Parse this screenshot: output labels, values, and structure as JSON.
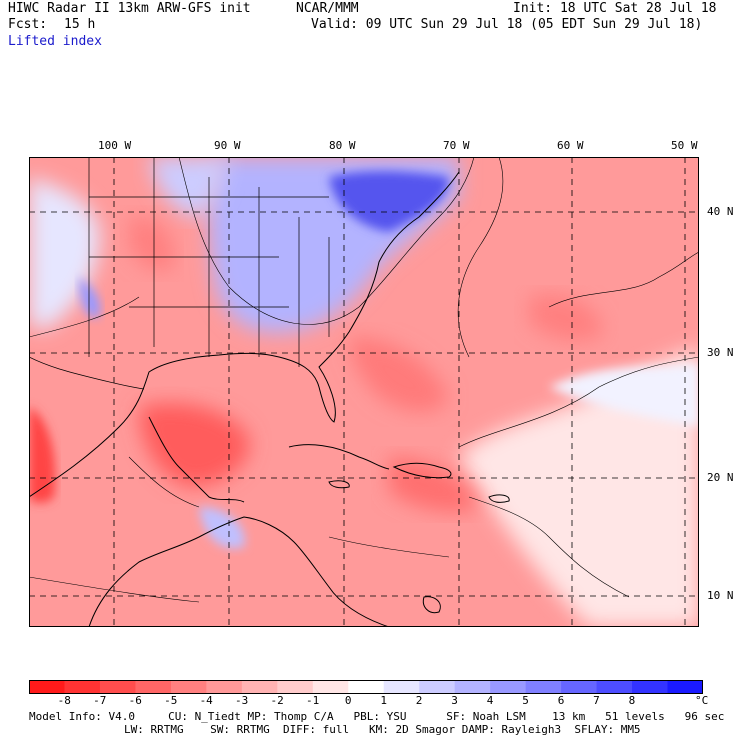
{
  "header": {
    "title": "HIWC Radar II 13km ARW-GFS init",
    "org": "NCAR/MMM",
    "init": "Init: 18 UTC Sat 28 Jul 18",
    "fcst_label": "Fcst:",
    "fcst_value": "15 h",
    "valid": "Valid: 09 UTC Sun 29 Jul 18 (05 EDT Sun 29 Jul 18)",
    "field": "Lifted index"
  },
  "map": {
    "lon_labels": [
      "100 W",
      "90 W",
      "80 W",
      "70 W",
      "60 W",
      "50 W"
    ],
    "lat_labels": [
      "40 N",
      "30 N",
      "20 N",
      "10 N"
    ]
  },
  "colorbar": {
    "labels": [
      "-8",
      "-7",
      "-6",
      "-5",
      "-4",
      "-3",
      "-2",
      "-1",
      "0",
      "1",
      "2",
      "3",
      "4",
      "5",
      "6",
      "7",
      "8"
    ],
    "unit": "°C",
    "colors": [
      "#ff1a1a",
      "#ff3333",
      "#ff4d4d",
      "#ff6666",
      "#ff8080",
      "#ff9999",
      "#ffb3b3",
      "#ffcccc",
      "#ffe6e6",
      "#ffffff",
      "#e6e6ff",
      "#ccccff",
      "#b3b3ff",
      "#9999ff",
      "#8080ff",
      "#6666ff",
      "#4d4dff",
      "#3333ff",
      "#1a1aff"
    ]
  },
  "footer": {
    "line1": "Model Info: V4.0     CU: N_Tiedt MP: Thomp C/A   PBL: YSU      SF: Noah LSM    13 km   51 levels   96 sec",
    "line2": "LW: RRTMG    SW: RRTMG  DIFF: full   KM: 2D Smagor DAMP: Rayleigh3  SFLAY: MM5"
  }
}
